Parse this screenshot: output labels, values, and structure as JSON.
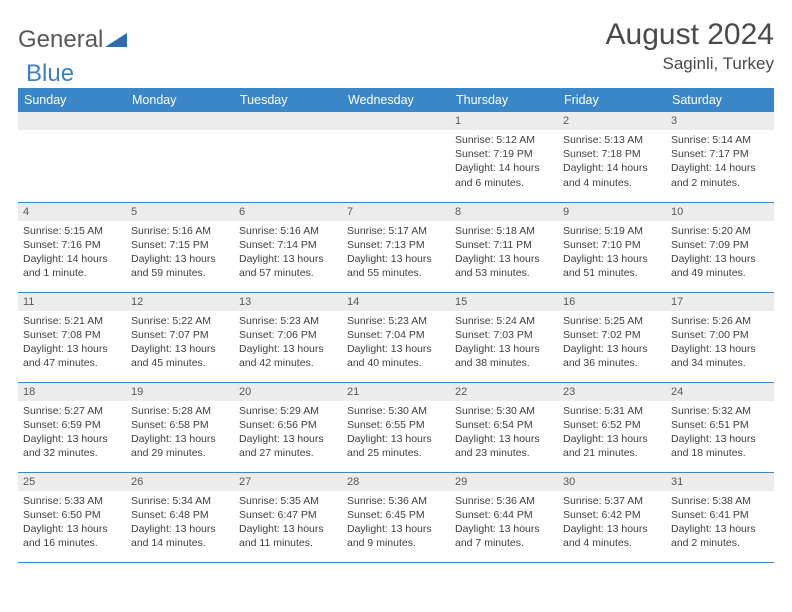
{
  "logo": {
    "text1": "General",
    "text2": "Blue"
  },
  "header": {
    "title": "August 2024",
    "location": "Saginli, Turkey"
  },
  "colors": {
    "header_bg": "#3b86c7",
    "header_text": "#ffffff",
    "daynum_bg": "#ececec",
    "daynum_text": "#5a5a5a",
    "body_text": "#3f3f3f",
    "border": "#3b86c7",
    "logo_gray": "#585858",
    "logo_blue": "#3e7fc0"
  },
  "days": [
    "Sunday",
    "Monday",
    "Tuesday",
    "Wednesday",
    "Thursday",
    "Friday",
    "Saturday"
  ],
  "weeks": [
    [
      null,
      null,
      null,
      null,
      {
        "n": "1",
        "sr": "5:12 AM",
        "ss": "7:19 PM",
        "dl": "14 hours and 6 minutes."
      },
      {
        "n": "2",
        "sr": "5:13 AM",
        "ss": "7:18 PM",
        "dl": "14 hours and 4 minutes."
      },
      {
        "n": "3",
        "sr": "5:14 AM",
        "ss": "7:17 PM",
        "dl": "14 hours and 2 minutes."
      }
    ],
    [
      {
        "n": "4",
        "sr": "5:15 AM",
        "ss": "7:16 PM",
        "dl": "14 hours and 1 minute."
      },
      {
        "n": "5",
        "sr": "5:16 AM",
        "ss": "7:15 PM",
        "dl": "13 hours and 59 minutes."
      },
      {
        "n": "6",
        "sr": "5:16 AM",
        "ss": "7:14 PM",
        "dl": "13 hours and 57 minutes."
      },
      {
        "n": "7",
        "sr": "5:17 AM",
        "ss": "7:13 PM",
        "dl": "13 hours and 55 minutes."
      },
      {
        "n": "8",
        "sr": "5:18 AM",
        "ss": "7:11 PM",
        "dl": "13 hours and 53 minutes."
      },
      {
        "n": "9",
        "sr": "5:19 AM",
        "ss": "7:10 PM",
        "dl": "13 hours and 51 minutes."
      },
      {
        "n": "10",
        "sr": "5:20 AM",
        "ss": "7:09 PM",
        "dl": "13 hours and 49 minutes."
      }
    ],
    [
      {
        "n": "11",
        "sr": "5:21 AM",
        "ss": "7:08 PM",
        "dl": "13 hours and 47 minutes."
      },
      {
        "n": "12",
        "sr": "5:22 AM",
        "ss": "7:07 PM",
        "dl": "13 hours and 45 minutes."
      },
      {
        "n": "13",
        "sr": "5:23 AM",
        "ss": "7:06 PM",
        "dl": "13 hours and 42 minutes."
      },
      {
        "n": "14",
        "sr": "5:23 AM",
        "ss": "7:04 PM",
        "dl": "13 hours and 40 minutes."
      },
      {
        "n": "15",
        "sr": "5:24 AM",
        "ss": "7:03 PM",
        "dl": "13 hours and 38 minutes."
      },
      {
        "n": "16",
        "sr": "5:25 AM",
        "ss": "7:02 PM",
        "dl": "13 hours and 36 minutes."
      },
      {
        "n": "17",
        "sr": "5:26 AM",
        "ss": "7:00 PM",
        "dl": "13 hours and 34 minutes."
      }
    ],
    [
      {
        "n": "18",
        "sr": "5:27 AM",
        "ss": "6:59 PM",
        "dl": "13 hours and 32 minutes."
      },
      {
        "n": "19",
        "sr": "5:28 AM",
        "ss": "6:58 PM",
        "dl": "13 hours and 29 minutes."
      },
      {
        "n": "20",
        "sr": "5:29 AM",
        "ss": "6:56 PM",
        "dl": "13 hours and 27 minutes."
      },
      {
        "n": "21",
        "sr": "5:30 AM",
        "ss": "6:55 PM",
        "dl": "13 hours and 25 minutes."
      },
      {
        "n": "22",
        "sr": "5:30 AM",
        "ss": "6:54 PM",
        "dl": "13 hours and 23 minutes."
      },
      {
        "n": "23",
        "sr": "5:31 AM",
        "ss": "6:52 PM",
        "dl": "13 hours and 21 minutes."
      },
      {
        "n": "24",
        "sr": "5:32 AM",
        "ss": "6:51 PM",
        "dl": "13 hours and 18 minutes."
      }
    ],
    [
      {
        "n": "25",
        "sr": "5:33 AM",
        "ss": "6:50 PM",
        "dl": "13 hours and 16 minutes."
      },
      {
        "n": "26",
        "sr": "5:34 AM",
        "ss": "6:48 PM",
        "dl": "13 hours and 14 minutes."
      },
      {
        "n": "27",
        "sr": "5:35 AM",
        "ss": "6:47 PM",
        "dl": "13 hours and 11 minutes."
      },
      {
        "n": "28",
        "sr": "5:36 AM",
        "ss": "6:45 PM",
        "dl": "13 hours and 9 minutes."
      },
      {
        "n": "29",
        "sr": "5:36 AM",
        "ss": "6:44 PM",
        "dl": "13 hours and 7 minutes."
      },
      {
        "n": "30",
        "sr": "5:37 AM",
        "ss": "6:42 PM",
        "dl": "13 hours and 4 minutes."
      },
      {
        "n": "31",
        "sr": "5:38 AM",
        "ss": "6:41 PM",
        "dl": "13 hours and 2 minutes."
      }
    ]
  ],
  "labels": {
    "sunrise": "Sunrise:",
    "sunset": "Sunset:",
    "daylight": "Daylight:"
  }
}
